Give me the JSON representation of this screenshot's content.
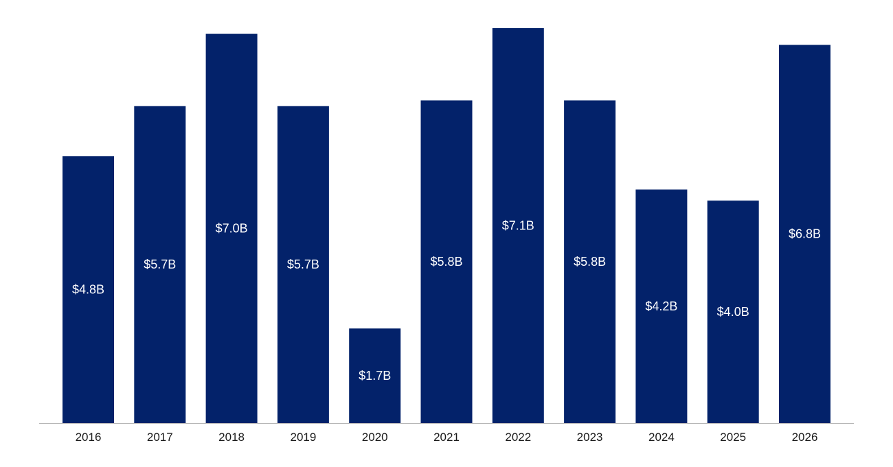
{
  "chart_data": {
    "type": "bar",
    "title": "",
    "xlabel": "",
    "ylabel": "",
    "categories": [
      "2016",
      "2017",
      "2018",
      "2019",
      "2020",
      "2021",
      "2022",
      "2023",
      "2024",
      "2025",
      "2026"
    ],
    "values": [
      4.8,
      5.7,
      7.0,
      5.7,
      1.7,
      5.8,
      7.1,
      5.8,
      4.2,
      4.0,
      6.8
    ],
    "data_labels": [
      "$4.8B",
      "$5.7B",
      "$7.0B",
      "$5.7B",
      "$1.7B",
      "$5.8B",
      "$7.1B",
      "$5.8B",
      "$4.2B",
      "$4.0B",
      "$6.8B"
    ],
    "ylim": [
      0,
      7.1
    ],
    "grid": false,
    "legend": "none",
    "colors": {
      "bar": "#03226a",
      "bar_label": "#ffffff",
      "tick_label": "#1a1a1a",
      "axis": "#b3b3b3",
      "background": "#ffffff"
    }
  }
}
